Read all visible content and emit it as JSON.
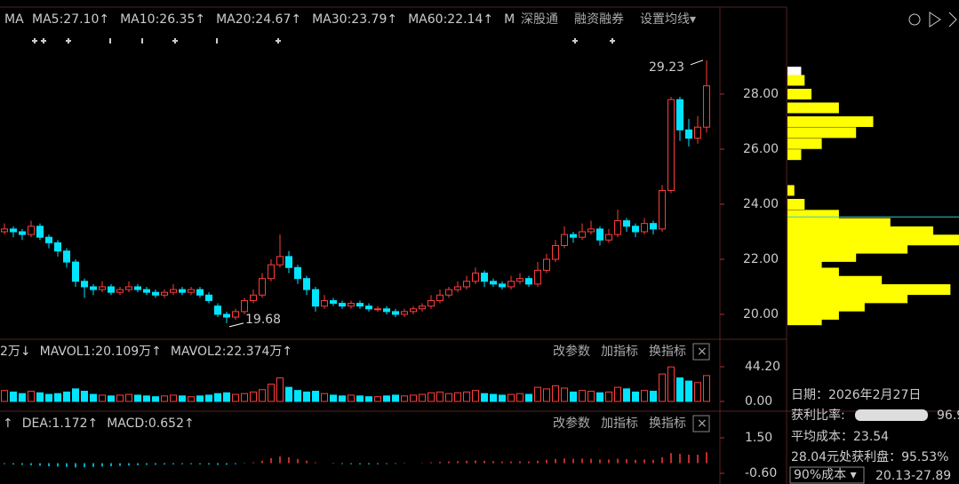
{
  "ma_bar": {
    "label": "MA",
    "items": [
      {
        "text": "MA5:27.10↑",
        "color": "#ffffff"
      },
      {
        "text": "MA10:26.35↑",
        "color": "#ffff00"
      },
      {
        "text": "MA20:24.67↑",
        "color": "#ff33ff"
      },
      {
        "text": "MA30:23.79↑",
        "color": "#33ff33"
      },
      {
        "text": "MA60:22.14↑",
        "color": "#dddddd"
      },
      {
        "text": "M",
        "color": "#33cccc"
      }
    ],
    "buttons": [
      "深股通",
      "融资融券",
      "设置均线▾"
    ]
  },
  "price_axis": {
    "ylim": [
      19.16,
      31.16
    ],
    "yticks": [
      {
        "value": 28,
        "label": "28.00"
      },
      {
        "value": 26,
        "label": "26.00"
      },
      {
        "value": 24,
        "label": "24.00"
      },
      {
        "value": 22,
        "label": "22.00"
      },
      {
        "value": 20,
        "label": "20.00"
      }
    ]
  },
  "high_label": "29.23",
  "low_label": "19.68",
  "candles": [
    [
      23.0,
      23.3,
      22.9,
      23.1
    ],
    [
      23.1,
      23.2,
      22.8,
      23.0
    ],
    [
      23.0,
      23.1,
      22.7,
      22.9
    ],
    [
      22.9,
      23.4,
      22.8,
      23.2
    ],
    [
      23.2,
      23.3,
      22.7,
      22.8
    ],
    [
      22.8,
      22.9,
      22.4,
      22.6
    ],
    [
      22.6,
      22.7,
      22.1,
      22.3
    ],
    [
      22.3,
      22.4,
      21.7,
      21.9
    ],
    [
      21.9,
      22.0,
      21.0,
      21.2
    ],
    [
      21.2,
      21.3,
      20.6,
      21.0
    ],
    [
      21.0,
      21.1,
      20.7,
      20.9
    ],
    [
      20.9,
      21.2,
      20.8,
      21.0
    ],
    [
      21.0,
      21.1,
      20.7,
      20.8
    ],
    [
      20.8,
      21.0,
      20.7,
      20.9
    ],
    [
      20.9,
      21.2,
      20.8,
      21.0
    ],
    [
      21.0,
      21.1,
      20.8,
      20.9
    ],
    [
      20.9,
      21.0,
      20.7,
      20.8
    ],
    [
      20.8,
      20.9,
      20.6,
      20.7
    ],
    [
      20.7,
      20.9,
      20.6,
      20.8
    ],
    [
      20.8,
      21.1,
      20.7,
      20.9
    ],
    [
      20.9,
      21.0,
      20.7,
      20.8
    ],
    [
      20.8,
      21.0,
      20.7,
      20.9
    ],
    [
      20.9,
      21.0,
      20.6,
      20.7
    ],
    [
      20.7,
      20.8,
      20.4,
      20.5
    ],
    [
      20.3,
      20.4,
      19.9,
      20.0
    ],
    [
      20.0,
      20.1,
      19.68,
      19.9
    ],
    [
      19.9,
      20.2,
      19.8,
      20.1
    ],
    [
      20.1,
      20.6,
      20.0,
      20.5
    ],
    [
      20.5,
      20.9,
      20.4,
      20.7
    ],
    [
      20.7,
      21.5,
      20.6,
      21.3
    ],
    [
      21.3,
      22.0,
      21.2,
      21.8
    ],
    [
      21.8,
      22.9,
      21.7,
      22.1
    ],
    [
      22.1,
      22.3,
      21.5,
      21.7
    ],
    [
      21.7,
      21.8,
      21.1,
      21.3
    ],
    [
      21.3,
      21.4,
      20.7,
      20.9
    ],
    [
      20.9,
      21.0,
      20.1,
      20.3
    ],
    [
      20.3,
      20.7,
      20.2,
      20.5
    ],
    [
      20.5,
      20.6,
      20.3,
      20.4
    ],
    [
      20.4,
      20.5,
      20.2,
      20.3
    ],
    [
      20.3,
      20.5,
      20.2,
      20.4
    ],
    [
      20.4,
      20.5,
      20.2,
      20.3
    ],
    [
      20.3,
      20.4,
      20.1,
      20.2
    ],
    [
      20.2,
      20.3,
      20.1,
      20.2
    ],
    [
      20.2,
      20.3,
      20.0,
      20.1
    ],
    [
      20.1,
      20.2,
      19.9,
      20.0
    ],
    [
      20.0,
      20.2,
      19.9,
      20.1
    ],
    [
      20.1,
      20.3,
      20.0,
      20.2
    ],
    [
      20.2,
      20.4,
      20.1,
      20.3
    ],
    [
      20.3,
      20.7,
      20.2,
      20.5
    ],
    [
      20.5,
      20.9,
      20.4,
      20.7
    ],
    [
      20.7,
      21.0,
      20.6,
      20.9
    ],
    [
      20.9,
      21.2,
      20.8,
      21.0
    ],
    [
      21.0,
      21.4,
      20.9,
      21.2
    ],
    [
      21.2,
      21.7,
      21.1,
      21.5
    ],
    [
      21.5,
      21.6,
      21.0,
      21.2
    ],
    [
      21.2,
      21.3,
      21.0,
      21.1
    ],
    [
      21.1,
      21.2,
      20.9,
      21.0
    ],
    [
      21.0,
      21.4,
      20.9,
      21.2
    ],
    [
      21.2,
      21.5,
      21.1,
      21.3
    ],
    [
      21.3,
      21.4,
      21.0,
      21.1
    ],
    [
      21.1,
      21.9,
      21.0,
      21.6
    ],
    [
      21.6,
      22.2,
      21.5,
      22.0
    ],
    [
      22.0,
      22.7,
      21.9,
      22.5
    ],
    [
      22.5,
      23.2,
      22.4,
      22.9
    ],
    [
      22.9,
      23.0,
      22.6,
      22.8
    ],
    [
      22.8,
      23.3,
      22.7,
      23.0
    ],
    [
      23.0,
      23.4,
      22.9,
      23.1
    ],
    [
      23.1,
      23.2,
      22.5,
      22.7
    ],
    [
      22.7,
      23.1,
      22.6,
      22.9
    ],
    [
      22.9,
      23.8,
      22.8,
      23.4
    ],
    [
      23.4,
      23.5,
      23.0,
      23.2
    ],
    [
      23.2,
      23.3,
      22.8,
      23.0
    ],
    [
      23.0,
      23.5,
      22.9,
      23.3
    ],
    [
      23.3,
      23.4,
      22.9,
      23.1
    ],
    [
      23.1,
      24.7,
      23.0,
      24.5
    ],
    [
      24.5,
      27.9,
      24.4,
      27.8
    ],
    [
      27.8,
      27.9,
      26.3,
      26.7
    ],
    [
      26.7,
      27.1,
      26.1,
      26.4
    ],
    [
      26.4,
      27.2,
      26.2,
      26.8
    ],
    [
      26.8,
      29.23,
      26.6,
      28.3
    ]
  ],
  "chip_profile": [
    [
      28.8,
      8
    ],
    [
      28.5,
      10
    ],
    [
      28.0,
      14
    ],
    [
      27.5,
      30
    ],
    [
      27.0,
      50
    ],
    [
      26.6,
      40
    ],
    [
      26.2,
      20
    ],
    [
      25.8,
      8
    ],
    [
      24.5,
      4
    ],
    [
      24.0,
      10
    ],
    [
      23.6,
      30
    ],
    [
      23.3,
      60
    ],
    [
      23.0,
      85
    ],
    [
      22.7,
      100
    ],
    [
      22.4,
      70
    ],
    [
      22.1,
      40
    ],
    [
      21.8,
      20
    ],
    [
      21.5,
      30
    ],
    [
      21.2,
      55
    ],
    [
      20.9,
      95
    ],
    [
      20.6,
      70
    ],
    [
      20.3,
      45
    ],
    [
      20.0,
      30
    ],
    [
      19.8,
      20
    ]
  ],
  "volume_panel": {
    "header": [
      "2万↓",
      "MAVOL1:20.109万↑",
      "MAVOL2:22.374万↑"
    ],
    "ylim": [
      0,
      44.2
    ],
    "yticks": [
      {
        "value": 44.2,
        "label": "44.20"
      },
      {
        "value": 0,
        "label": "0.00"
      }
    ],
    "values": [
      14,
      12,
      10,
      13,
      11,
      9,
      10,
      12,
      16,
      13,
      9,
      8,
      7,
      8,
      9,
      8,
      7,
      6,
      7,
      8,
      7,
      6,
      7,
      8,
      10,
      11,
      9,
      10,
      12,
      15,
      22,
      30,
      18,
      14,
      12,
      13,
      10,
      8,
      7,
      8,
      7,
      6,
      6,
      7,
      8,
      7,
      8,
      9,
      11,
      12,
      10,
      11,
      12,
      14,
      10,
      9,
      8,
      9,
      10,
      9,
      18,
      16,
      20,
      17,
      12,
      14,
      13,
      11,
      12,
      18,
      16,
      12,
      14,
      13,
      35,
      44,
      30,
      26,
      24,
      33
    ]
  },
  "macd_panel": {
    "header": [
      "↑",
      "DEA:1.172↑",
      "MACD:0.652↑"
    ],
    "ylim": [
      -0.6,
      1.5
    ],
    "yticks": [
      {
        "value": 1.5,
        "label": "1.50"
      },
      {
        "value": -0.6,
        "label": "-0.60"
      }
    ],
    "values": [
      -0.05,
      -0.08,
      -0.1,
      -0.12,
      -0.15,
      -0.18,
      -0.2,
      -0.22,
      -0.25,
      -0.24,
      -0.22,
      -0.2,
      -0.18,
      -0.16,
      -0.14,
      -0.12,
      -0.1,
      -0.09,
      -0.08,
      -0.07,
      -0.06,
      -0.06,
      -0.07,
      -0.08,
      -0.1,
      -0.09,
      -0.06,
      -0.02,
      0.05,
      0.15,
      0.3,
      0.4,
      0.35,
      0.25,
      0.15,
      0.05,
      0.0,
      -0.03,
      -0.05,
      -0.06,
      -0.07,
      -0.07,
      -0.06,
      -0.05,
      -0.04,
      -0.02,
      0.0,
      0.02,
      0.05,
      0.08,
      0.1,
      0.12,
      0.14,
      0.16,
      0.14,
      0.12,
      0.1,
      0.1,
      0.11,
      0.1,
      0.15,
      0.2,
      0.25,
      0.28,
      0.26,
      0.27,
      0.26,
      0.22,
      0.22,
      0.26,
      0.24,
      0.2,
      0.22,
      0.2,
      0.35,
      0.6,
      0.55,
      0.5,
      0.5,
      0.65
    ]
  },
  "panel_buttons": [
    "改参数",
    "加指标",
    "换指标",
    "×"
  ],
  "info": {
    "date": "日期：2026年2月27日",
    "profit_label": "获利比率:",
    "profit_value": "96.9",
    "avg_cost": "平均成本：23.54",
    "profit_at": "28.04元处获利盘：95.53%",
    "cost_select": "90%成本 ▾",
    "cost_range": "20.13-27.89"
  }
}
